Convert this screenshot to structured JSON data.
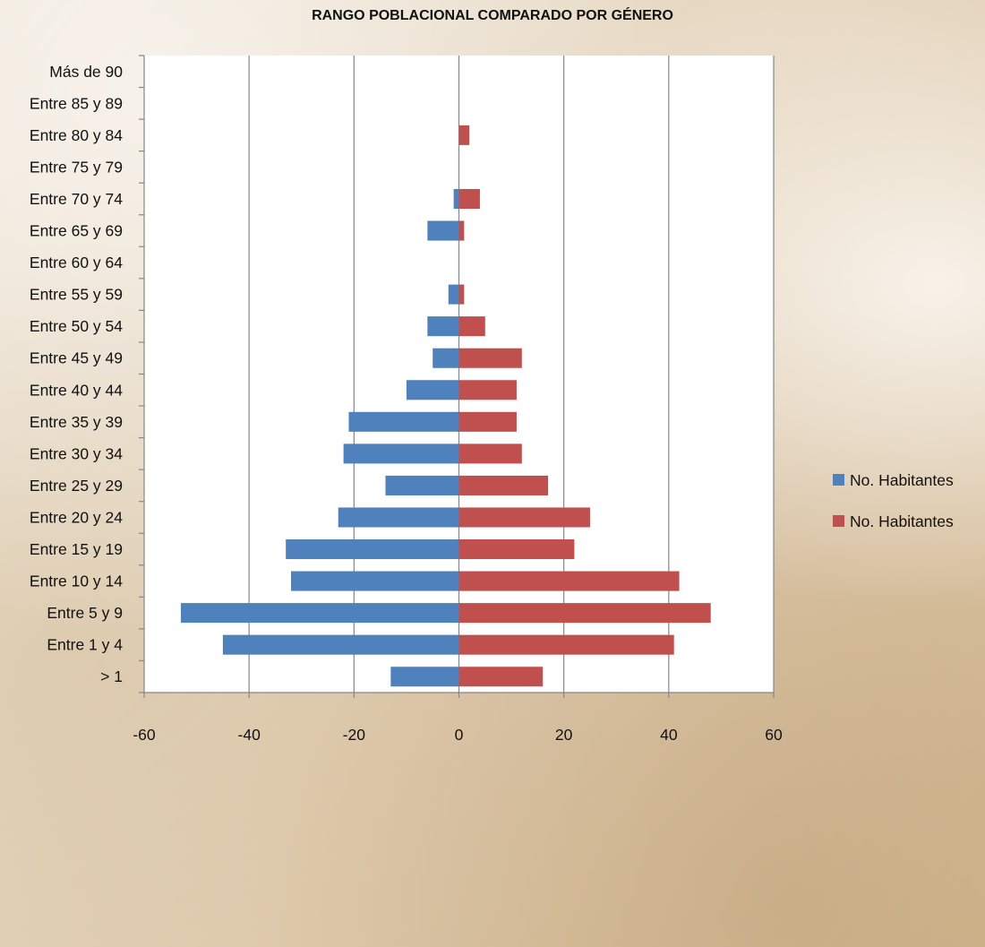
{
  "chart_data": {
    "type": "bar",
    "orientation": "horizontal",
    "title": "RANGO POBLACIONAL COMPARADO POR GÉNERO",
    "categories": [
      "> 1",
      "Entre 1 y 4",
      "Entre 5 y 9",
      "Entre 10 y 14",
      "Entre 15 y 19",
      "Entre 20 y 24",
      "Entre 25 y 29",
      "Entre 30 y 34",
      "Entre 35 y 39",
      "Entre 40 y 44",
      "Entre 45 y 49",
      "Entre 50 y 54",
      "Entre 55 y 59",
      "Entre 60 y 64",
      "Entre 65 y 69",
      "Entre 70 y 74",
      "Entre 75 y 79",
      "Entre 80 y 84",
      "Entre 85 y 89",
      "Más de 90"
    ],
    "series": [
      {
        "name": "No. Habitantes",
        "color": "#4f81bd",
        "values": [
          -13,
          -45,
          -53,
          -32,
          -33,
          -23,
          -14,
          -22,
          -21,
          -10,
          -5,
          -6,
          -2,
          0,
          -6,
          -1,
          0,
          0,
          0,
          0
        ]
      },
      {
        "name": "No. Habitantes",
        "color": "#c0504d",
        "values": [
          16,
          41,
          48,
          42,
          22,
          25,
          17,
          12,
          11,
          11,
          12,
          5,
          1,
          0,
          1,
          4,
          0,
          2,
          0,
          0
        ]
      }
    ],
    "xlim": [
      -60,
      60
    ],
    "xticks": [
      -60,
      -40,
      -20,
      0,
      20,
      40,
      60
    ],
    "xlabel": "",
    "ylabel": "",
    "grid": "vertical",
    "stacked": true,
    "legend_position": "right"
  }
}
